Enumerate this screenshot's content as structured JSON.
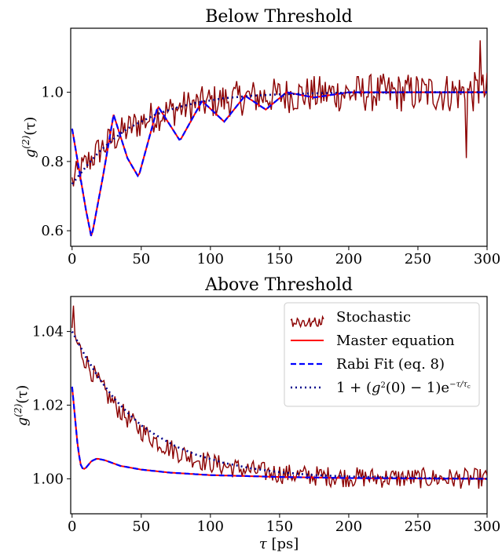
{
  "colors": {
    "stochastic": "#8b0000",
    "master": "#ff0000",
    "rabi_fit": "#0000ff",
    "exp_fit": "#00008b"
  },
  "chart_data": [
    {
      "type": "line",
      "title": "Below Threshold",
      "xlabel": "",
      "ylabel": "g^(2)(τ)",
      "ylabel_parts": {
        "base": "g",
        "sup": "(2)",
        "arg": "(τ)"
      },
      "xlim": [
        -1,
        300
      ],
      "ylim": [
        0.555,
        1.185
      ],
      "xticks": [
        0,
        50,
        100,
        150,
        200,
        250,
        300
      ],
      "yticks": [
        0.6,
        0.8,
        1.0
      ],
      "ytick_labels": [
        "0.6",
        "0.8",
        "1.0"
      ],
      "xtick_labels": [
        "0",
        "50",
        "100",
        "150",
        "200",
        "250",
        "300"
      ],
      "series": [
        {
          "name": "Stochastic",
          "kind": "noisy",
          "x": [
            0,
            300
          ],
          "baseline": "1 - 0.26 e^(-x/45)",
          "noise_amplitude": [
            0.04,
            0.06
          ],
          "spikes": [
            [
              295,
              1.15
            ],
            [
              285,
              0.81
            ]
          ]
        },
        {
          "name": "Master equation",
          "x": [
            0,
            10,
            14,
            22,
            30,
            40,
            48,
            62,
            78,
            94,
            110,
            125,
            140,
            155,
            175,
            200,
            300
          ],
          "y": [
            0.895,
            0.66,
            0.58,
            0.75,
            0.935,
            0.81,
            0.755,
            0.96,
            0.86,
            0.975,
            0.915,
            0.99,
            0.95,
            1.0,
            0.985,
            1.0,
            1.0
          ]
        },
        {
          "name": "Rabi Fit (eq. 8)",
          "x": [
            0,
            10,
            14,
            22,
            30,
            40,
            48,
            62,
            78,
            94,
            110,
            125,
            140,
            155,
            175,
            200,
            300
          ],
          "y": [
            0.895,
            0.66,
            0.58,
            0.75,
            0.935,
            0.81,
            0.755,
            0.96,
            0.86,
            0.975,
            0.915,
            0.99,
            0.95,
            1.0,
            0.985,
            1.0,
            1.0
          ]
        },
        {
          "name": "1 + (g^2(0) - 1) e^(-τ/τc)",
          "x": [
            0,
            5,
            10,
            20,
            30,
            40,
            50,
            60,
            75,
            90,
            110,
            130,
            150,
            175,
            200,
            250,
            300
          ],
          "y": [
            0.735,
            0.76,
            0.785,
            0.83,
            0.865,
            0.895,
            0.915,
            0.935,
            0.955,
            0.97,
            0.983,
            0.99,
            0.994,
            0.997,
            0.999,
            1.0,
            1.0
          ]
        }
      ]
    },
    {
      "type": "line",
      "title": "Above Threshold",
      "xlabel": "τ [ps]",
      "xlabel_parts": {
        "sym": "τ",
        "unit": " [ps]"
      },
      "ylabel": "g^(2)(τ)",
      "ylabel_parts": {
        "base": "g",
        "sup": "(2)",
        "arg": "(τ)"
      },
      "xlim": [
        -1,
        300
      ],
      "ylim": [
        0.9905,
        1.0495
      ],
      "xticks": [
        0,
        50,
        100,
        150,
        200,
        250,
        300
      ],
      "yticks": [
        1.0,
        1.02,
        1.04
      ],
      "ytick_labels": [
        "1.00",
        "1.02",
        "1.04"
      ],
      "xtick_labels": [
        "0",
        "50",
        "100",
        "150",
        "200",
        "250",
        "300"
      ],
      "legend": {
        "placement": "top-right",
        "entries": [
          "Stochastic",
          "Master equation",
          "Rabi Fit (eq. 8)",
          "1 + (g²(0) − 1)e^(−τ/τc)"
        ],
        "formula_parts": {
          "a": "1 + (",
          "g": "g",
          "two": "2",
          "b": "(0) − 1)e",
          "exp": "−τ/τ",
          "sub": "c"
        }
      },
      "series": [
        {
          "name": "Stochastic",
          "kind": "noisy",
          "x": [
            0,
            300
          ],
          "baseline": "1 + 0.04 e^(-x/45)",
          "noise_amplitude": [
            0.003,
            0.003
          ],
          "spikes": [
            [
              1,
              1.047
            ]
          ]
        },
        {
          "name": "Master equation",
          "x": [
            0,
            2,
            4,
            6,
            8,
            10,
            14,
            18,
            24,
            35,
            50,
            70,
            100,
            150,
            200,
            300
          ],
          "y": [
            1.025,
            1.017,
            1.009,
            1.004,
            1.0025,
            1.003,
            1.0048,
            1.0055,
            1.005,
            1.0035,
            1.0025,
            1.0017,
            1.001,
            1.0005,
            1.0002,
            1.0
          ]
        },
        {
          "name": "Rabi Fit (eq. 8)",
          "x": [
            0,
            2,
            4,
            6,
            8,
            10,
            14,
            18,
            24,
            35,
            50,
            70,
            100,
            150,
            200,
            300
          ],
          "y": [
            1.025,
            1.017,
            1.009,
            1.004,
            1.0025,
            1.003,
            1.0048,
            1.0055,
            1.005,
            1.0035,
            1.0025,
            1.0017,
            1.001,
            1.0005,
            1.0002,
            1.0
          ]
        },
        {
          "name": "1 + (g^2(0) - 1) e^(-τ/τc)",
          "x": [
            0,
            10,
            20,
            30,
            40,
            50,
            60,
            75,
            90,
            110,
            130,
            150,
            175,
            200,
            250,
            300
          ],
          "y": [
            1.04,
            1.033,
            1.027,
            1.022,
            1.018,
            1.0145,
            1.012,
            1.0088,
            1.0065,
            1.0043,
            1.0028,
            1.0018,
            1.001,
            1.0006,
            1.0002,
            1.0
          ]
        }
      ]
    }
  ]
}
